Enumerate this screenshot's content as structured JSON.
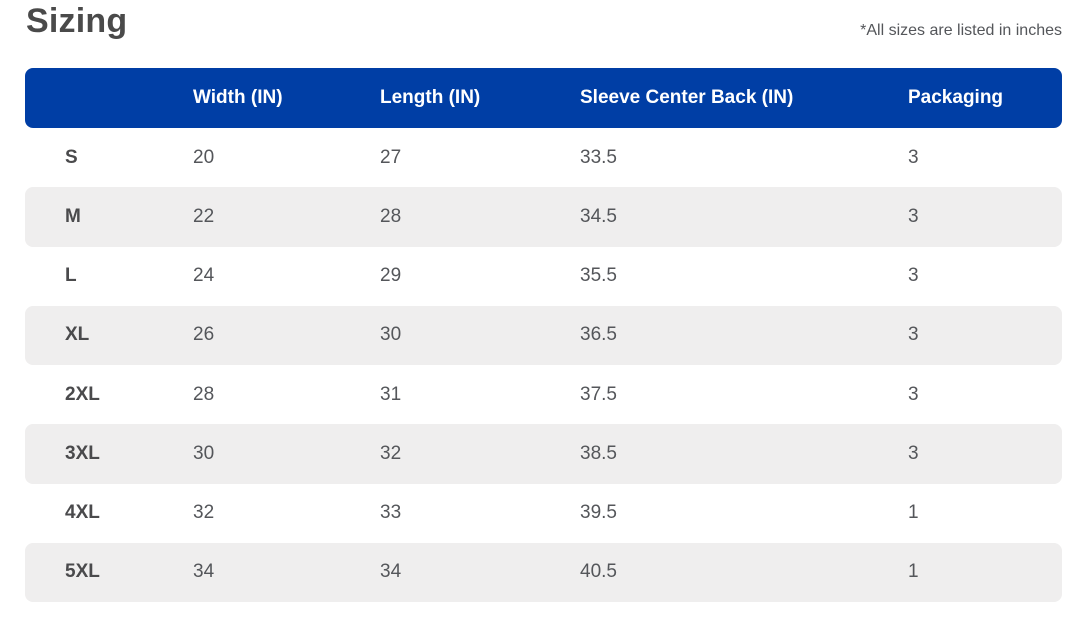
{
  "title": "Sizing",
  "note": "*All sizes are listed in inches",
  "colors": {
    "header_bg": "#003EA5",
    "header_text": "#FFFFFF",
    "stripe_bg": "#EFEEEE",
    "title_text": "#4A4A4A",
    "size_text": "#4A4A4C",
    "body_text": "#54565A"
  },
  "table": {
    "columns": [
      "",
      "Width (IN)",
      "Length (IN)",
      "Sleeve Center Back (IN)",
      "Packaging"
    ],
    "rows": [
      [
        "S",
        "20",
        "27",
        "33.5",
        "3"
      ],
      [
        "M",
        "22",
        "28",
        "34.5",
        "3"
      ],
      [
        "L",
        "24",
        "29",
        "35.5",
        "3"
      ],
      [
        "XL",
        "26",
        "30",
        "36.5",
        "3"
      ],
      [
        "2XL",
        "28",
        "31",
        "37.5",
        "3"
      ],
      [
        "3XL",
        "30",
        "32",
        "38.5",
        "3"
      ],
      [
        "4XL",
        "32",
        "33",
        "39.5",
        "1"
      ],
      [
        "5XL",
        "34",
        "34",
        "40.5",
        "1"
      ]
    ]
  }
}
